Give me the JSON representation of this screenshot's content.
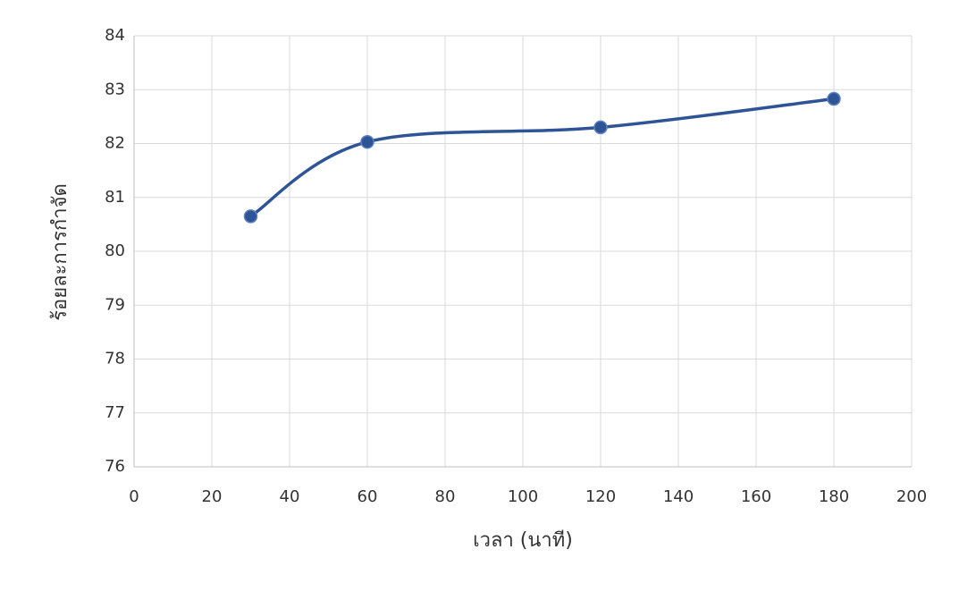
{
  "chart_data": {
    "type": "line",
    "smooth": true,
    "markers": true,
    "x_label": "เวลา (นาที)",
    "y_label": "ร้อยละการกำจัด",
    "x": [
      30,
      60,
      120,
      180
    ],
    "values": [
      80.65,
      82.03,
      82.3,
      82.83
    ],
    "color": "#2f5496",
    "xlim": [
      0,
      200
    ],
    "xticks": [
      0,
      20,
      40,
      60,
      80,
      100,
      120,
      140,
      160,
      180,
      200
    ],
    "ylim": [
      76,
      84
    ],
    "yticks": [
      76,
      77,
      78,
      79,
      80,
      81,
      82,
      83,
      84
    ],
    "grid": true
  }
}
